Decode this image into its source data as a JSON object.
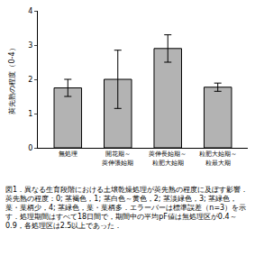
{
  "chart_data": {
    "type": "bar",
    "title": "図1．異なる生育段階における土壌乾燥処理が莢先熟の程度に及ぼす影響．",
    "subtitle": "莢先熟の程度：0; 茎褐色，1; 茎白色～黄色，2; 茎淡緑色，3; 茎緑色，葉・葉柄少，4; 茎緑色，葉・葉柄多．エラーバーは標準誤差（n=3）を示す．処理期間はすべて18日間で，期間中の平均pF値は無処理区が0.4～0.9，各処理区は2.5以上であった．",
    "y_label": "莢先熟の程度（0-4）",
    "categories": [
      "無処理",
      "開花期～\n莢伸張始期",
      "莢伸長始期～\n粒肥大始期",
      "粒肥大始期～\n粒最大期"
    ],
    "values": [
      1.75,
      2.0,
      2.9,
      1.77
    ],
    "errors": [
      0.25,
      0.85,
      0.4,
      0.12
    ],
    "color": "#b3b3b3",
    "ylim": [
      0,
      4
    ],
    "yticks": [
      0,
      1,
      2,
      3,
      4
    ],
    "grid": false
  }
}
